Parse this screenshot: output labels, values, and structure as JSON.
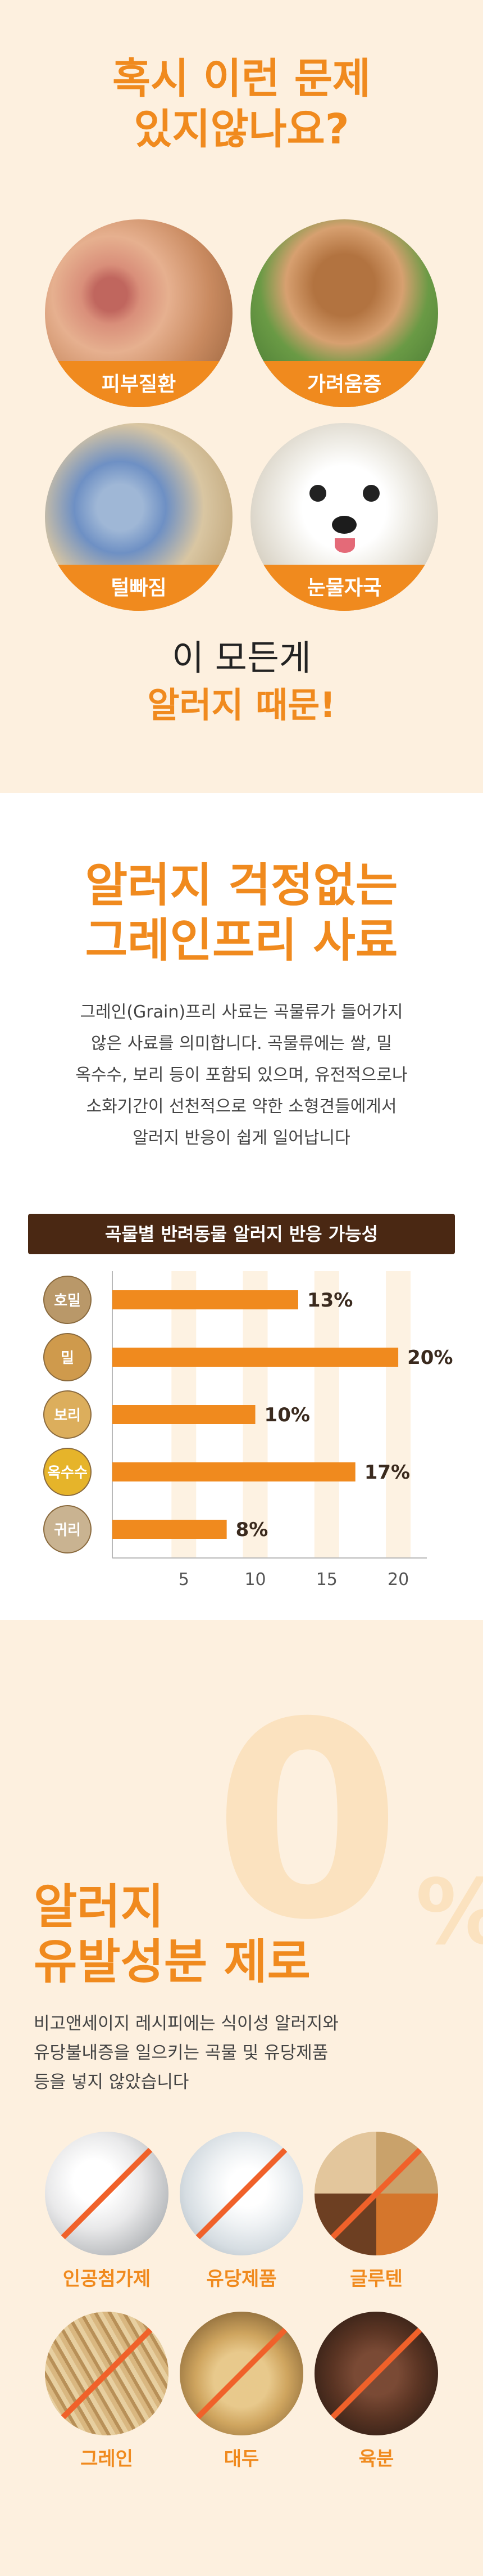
{
  "section1": {
    "title_line1": "혹시 이런 문제",
    "title_line2": "있지않나요?",
    "problems": [
      {
        "label": "피부질환"
      },
      {
        "label": "가려움증"
      },
      {
        "label": "털빠짐"
      },
      {
        "label": "눈물자국"
      }
    ],
    "sub_line1": "이 모든게",
    "sub_line2": "알러지 때문!"
  },
  "section2": {
    "title_line1": "알러지 걱정없는",
    "title_line2": "그레인프리 사료",
    "body": [
      "그레인(Grain)프리 사료는 곡물류가 들어가지",
      "않은 사료를 의미합니다. 곡물류에는 쌀, 밀",
      "옥수수, 보리 등이 포함되 있으며, 유전적으로나",
      "소화기간이 선천적으로 약한 소형견들에게서",
      "알러지 반응이 쉽게 일어납니다"
    ],
    "chart_title": "곡물별 반려동물 알러지 반응 가능성"
  },
  "chart_data": {
    "type": "bar",
    "orientation": "horizontal",
    "title": "곡물별 반려동물 알러지 반응 가능성",
    "categories": [
      "호밀",
      "밀",
      "보리",
      "옥수수",
      "귀리"
    ],
    "values": [
      13,
      20,
      10,
      17,
      8
    ],
    "value_labels": [
      "13%",
      "20%",
      "10%",
      "17%",
      "8%"
    ],
    "xticks": [
      5,
      10,
      15,
      20
    ],
    "xlim": [
      0,
      22
    ],
    "bar_color": "#f08a1e"
  },
  "section3": {
    "big_number": "0",
    "big_percent": "%",
    "title_line1": "알러지",
    "title_line2": "유발성분 제로",
    "body": [
      "비고앤세이지 레시피에는 식이성 알러지와",
      "유당불내증을 일으키는 곡물 및 유당제품",
      "등을 넣지 않았습니다"
    ],
    "ingredients": [
      {
        "label": "인공첨가제"
      },
      {
        "label": "유당제품"
      },
      {
        "label": "글루텐"
      },
      {
        "label": "그레인"
      },
      {
        "label": "대두"
      },
      {
        "label": "육분"
      }
    ]
  },
  "colors": {
    "accent": "#f08a1e",
    "cream": "#fdf0df",
    "dark_brown": "#4a2813",
    "slash": "#f0612a"
  }
}
